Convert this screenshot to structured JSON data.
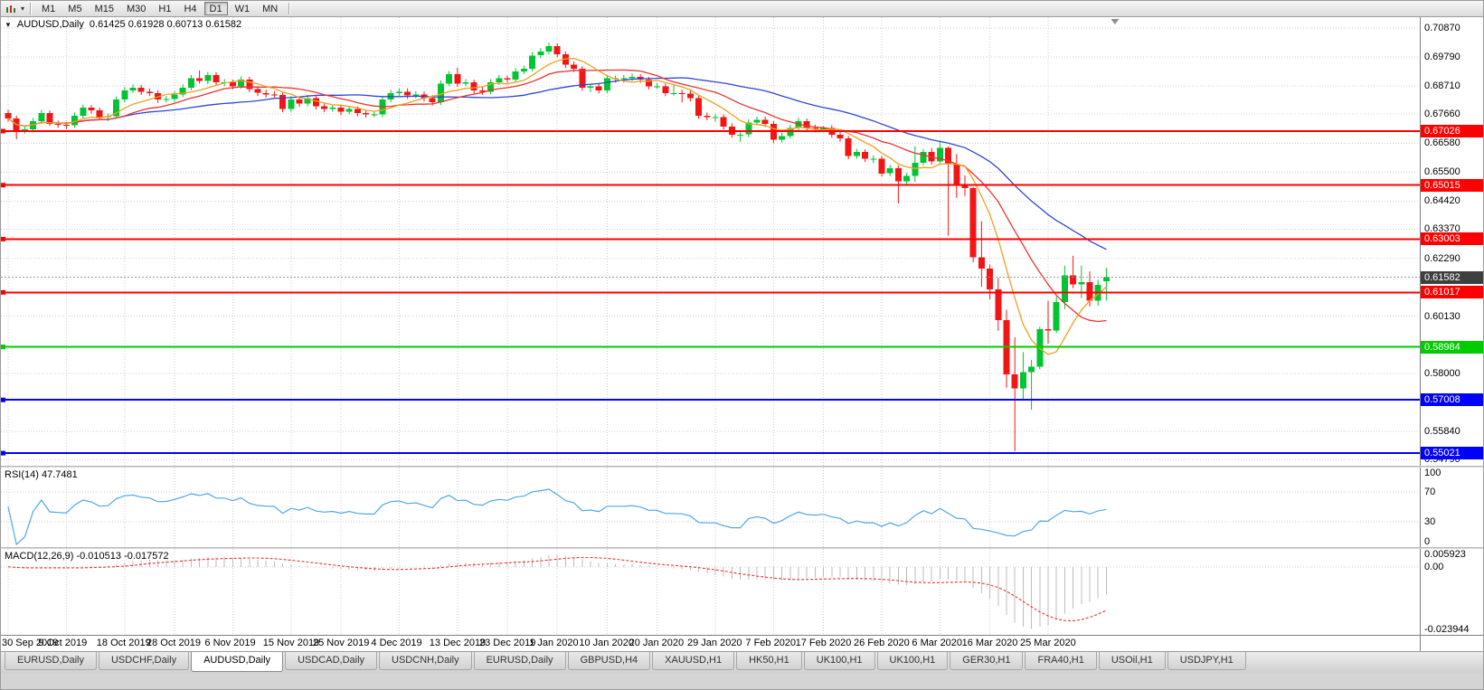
{
  "toolbar": {
    "timeframes": [
      "M1",
      "M5",
      "M15",
      "M30",
      "H1",
      "H4",
      "D1",
      "W1",
      "MN"
    ],
    "active_timeframe": "D1"
  },
  "chart": {
    "symbol_title": "AUDUSD,Daily",
    "ohlc_display": "0.61425 0.61928 0.60713 0.61582",
    "collapse_icon": "▼",
    "colors": {
      "up": "#00C432",
      "down": "#F21515",
      "grid": "#CFCFCF",
      "ma_slow": "#2E46D2",
      "ma_mid": "#E93434",
      "ma_fast": "#F0A020",
      "bid_line": "#9A9A9A",
      "current_label_bg": "#3F3F3F",
      "shift_marker": "#8E8E8E"
    },
    "price_axis": {
      "max": 0.7087,
      "min": 0.5479,
      "ticks": [
        {
          "value": 0.7087,
          "label": "0.70870"
        },
        {
          "value": 0.6979,
          "label": "0.69790"
        },
        {
          "value": 0.6871,
          "label": "0.68710"
        },
        {
          "value": 0.6766,
          "label": "0.67660"
        },
        {
          "value": 0.6658,
          "label": "0.66580"
        },
        {
          "value": 0.655,
          "label": "0.65500"
        },
        {
          "value": 0.6442,
          "label": "0.64420"
        },
        {
          "value": 0.6337,
          "label": "0.63370"
        },
        {
          "value": 0.6229,
          "label": "0.62290"
        },
        {
          "value": 0.6013,
          "label": "0.60130"
        },
        {
          "value": 0.58,
          "label": "0.58000"
        },
        {
          "value": 0.5584,
          "label": "0.55840"
        },
        {
          "value": 0.5479,
          "label": "0.54790"
        }
      ]
    },
    "current_price": {
      "value": 0.61582,
      "label": "0.61582"
    },
    "hlines": [
      {
        "value": 0.67026,
        "label": "0.67026",
        "color": "#FF0000"
      },
      {
        "value": 0.65015,
        "label": "0.65015",
        "color": "#FF0000"
      },
      {
        "value": 0.63003,
        "label": "0.63003",
        "color": "#FF0000"
      },
      {
        "value": 0.61017,
        "label": "0.61017",
        "color": "#FF0000"
      },
      {
        "value": 0.58984,
        "label": "0.58984",
        "color": "#00CC00"
      },
      {
        "value": 0.57008,
        "label": "0.57008",
        "color": "#0000FF"
      },
      {
        "value": 0.55021,
        "label": "0.55021",
        "color": "#0000FF"
      }
    ],
    "mas": [
      {
        "period": 30,
        "color": "#2E46D2"
      },
      {
        "period": 14,
        "color": "#E93434"
      },
      {
        "period": 7,
        "color": "#F0A020"
      }
    ],
    "time_axis": {
      "ticks": [
        [
          "30 Sep 2019",
          0
        ],
        [
          "9 Oct 2019",
          7
        ],
        [
          "18 Oct 2019",
          14
        ],
        [
          "28 Oct 2019",
          20
        ],
        [
          "6 Nov 2019",
          27
        ],
        [
          "15 Nov 2019",
          34
        ],
        [
          "25 Nov 2019",
          40
        ],
        [
          "4 Dec 2019",
          47
        ],
        [
          "13 Dec 2019",
          54
        ],
        [
          "23 Dec 2019",
          60
        ],
        [
          "1 Jan 2020",
          66
        ],
        [
          "10 Jan 2020",
          72
        ],
        [
          "20 Jan 2020",
          78
        ],
        [
          "29 Jan 2020",
          85
        ],
        [
          "7 Feb 2020",
          92
        ],
        [
          "17 Feb 2020",
          98
        ],
        [
          "26 Feb 2020",
          105
        ],
        [
          "6 Mar 2020",
          112
        ],
        [
          "16 Mar 2020",
          118
        ],
        [
          "25 Mar 2020",
          125
        ]
      ]
    },
    "candles": [
      [
        0.677,
        0.6782,
        0.6738,
        0.675
      ],
      [
        0.675,
        0.676,
        0.6672,
        0.6705
      ],
      [
        0.6705,
        0.672,
        0.6693,
        0.671
      ],
      [
        0.671,
        0.6752,
        0.6698,
        0.674
      ],
      [
        0.674,
        0.6782,
        0.673,
        0.677
      ],
      [
        0.677,
        0.678,
        0.6722,
        0.673
      ],
      [
        0.673,
        0.6742,
        0.6715,
        0.6727
      ],
      [
        0.6727,
        0.6737,
        0.671,
        0.6725
      ],
      [
        0.6725,
        0.6772,
        0.6715,
        0.676
      ],
      [
        0.676,
        0.6802,
        0.675,
        0.679
      ],
      [
        0.679,
        0.68,
        0.6768,
        0.678
      ],
      [
        0.678,
        0.679,
        0.6745,
        0.6755
      ],
      [
        0.6755,
        0.6768,
        0.674,
        0.6758
      ],
      [
        0.6758,
        0.6832,
        0.675,
        0.682
      ],
      [
        0.682,
        0.6867,
        0.681,
        0.6855
      ],
      [
        0.6855,
        0.6877,
        0.6845,
        0.6865
      ],
      [
        0.6865,
        0.6875,
        0.6838,
        0.685
      ],
      [
        0.685,
        0.6862,
        0.6833,
        0.6845
      ],
      [
        0.6845,
        0.6855,
        0.6808,
        0.682
      ],
      [
        0.682,
        0.6834,
        0.681,
        0.6822
      ],
      [
        0.6822,
        0.6852,
        0.6812,
        0.684
      ],
      [
        0.684,
        0.6877,
        0.683,
        0.6865
      ],
      [
        0.6865,
        0.6912,
        0.6855,
        0.69
      ],
      [
        0.69,
        0.6929,
        0.688,
        0.689
      ],
      [
        0.689,
        0.6924,
        0.6878,
        0.6912
      ],
      [
        0.6912,
        0.6922,
        0.6873,
        0.6885
      ],
      [
        0.6885,
        0.6897,
        0.687,
        0.6885
      ],
      [
        0.6885,
        0.6895,
        0.6858,
        0.687
      ],
      [
        0.687,
        0.6907,
        0.686,
        0.6895
      ],
      [
        0.6895,
        0.6905,
        0.6848,
        0.686
      ],
      [
        0.686,
        0.687,
        0.6833,
        0.6845
      ],
      [
        0.6845,
        0.6857,
        0.6828,
        0.684
      ],
      [
        0.684,
        0.6852,
        0.6826,
        0.6838
      ],
      [
        0.6838,
        0.6848,
        0.6773,
        0.6785
      ],
      [
        0.6785,
        0.6832,
        0.6775,
        0.682
      ],
      [
        0.682,
        0.683,
        0.6793,
        0.6805
      ],
      [
        0.6805,
        0.6837,
        0.6795,
        0.6825
      ],
      [
        0.6825,
        0.6835,
        0.6783,
        0.6795
      ],
      [
        0.6795,
        0.6807,
        0.6773,
        0.6785
      ],
      [
        0.6785,
        0.6802,
        0.6775,
        0.679
      ],
      [
        0.679,
        0.68,
        0.6763,
        0.6775
      ],
      [
        0.6775,
        0.6797,
        0.6765,
        0.6785
      ],
      [
        0.6785,
        0.6795,
        0.6758,
        0.677
      ],
      [
        0.677,
        0.678,
        0.6753,
        0.6765
      ],
      [
        0.6765,
        0.6777,
        0.6755,
        0.6765
      ],
      [
        0.6765,
        0.6832,
        0.6755,
        0.682
      ],
      [
        0.682,
        0.6857,
        0.681,
        0.6845
      ],
      [
        0.6845,
        0.6862,
        0.6835,
        0.685
      ],
      [
        0.685,
        0.6862,
        0.6823,
        0.6835
      ],
      [
        0.6835,
        0.6852,
        0.6825,
        0.684
      ],
      [
        0.684,
        0.685,
        0.6813,
        0.6825
      ],
      [
        0.6825,
        0.6837,
        0.6798,
        0.681
      ],
      [
        0.681,
        0.6892,
        0.68,
        0.688
      ],
      [
        0.688,
        0.6927,
        0.687,
        0.6915
      ],
      [
        0.6915,
        0.6939,
        0.6868,
        0.688
      ],
      [
        0.688,
        0.6897,
        0.687,
        0.6885
      ],
      [
        0.6885,
        0.6895,
        0.6843,
        0.6855
      ],
      [
        0.6855,
        0.6867,
        0.6838,
        0.685
      ],
      [
        0.685,
        0.6897,
        0.684,
        0.6885
      ],
      [
        0.6885,
        0.6912,
        0.6875,
        0.69
      ],
      [
        0.69,
        0.691,
        0.6883,
        0.6895
      ],
      [
        0.6895,
        0.6937,
        0.6885,
        0.6925
      ],
      [
        0.6925,
        0.6947,
        0.6915,
        0.6935
      ],
      [
        0.6935,
        0.6997,
        0.6925,
        0.6985
      ],
      [
        0.6985,
        0.7012,
        0.6975,
        0.7
      ],
      [
        0.7,
        0.7032,
        0.699,
        0.702
      ],
      [
        0.702,
        0.703,
        0.6978,
        0.699
      ],
      [
        0.699,
        0.7,
        0.6938,
        0.695
      ],
      [
        0.695,
        0.6962,
        0.6923,
        0.6935
      ],
      [
        0.6935,
        0.6945,
        0.6853,
        0.6865
      ],
      [
        0.6865,
        0.6877,
        0.6849,
        0.687
      ],
      [
        0.687,
        0.688,
        0.6843,
        0.6855
      ],
      [
        0.6855,
        0.6912,
        0.6845,
        0.69
      ],
      [
        0.69,
        0.691,
        0.6883,
        0.69
      ],
      [
        0.69,
        0.6912,
        0.6883,
        0.69
      ],
      [
        0.69,
        0.6917,
        0.689,
        0.6905
      ],
      [
        0.6905,
        0.6915,
        0.6883,
        0.6895
      ],
      [
        0.6895,
        0.6905,
        0.6858,
        0.687
      ],
      [
        0.687,
        0.6882,
        0.686,
        0.687
      ],
      [
        0.687,
        0.688,
        0.6833,
        0.6845
      ],
      [
        0.6845,
        0.6877,
        0.6835,
        0.6845
      ],
      [
        0.6845,
        0.6857,
        0.681,
        0.6842
      ],
      [
        0.6842,
        0.6854,
        0.6813,
        0.6825
      ],
      [
        0.6825,
        0.6835,
        0.6748,
        0.676
      ],
      [
        0.676,
        0.6772,
        0.6743,
        0.6755
      ],
      [
        0.6755,
        0.6767,
        0.6738,
        0.6755
      ],
      [
        0.6755,
        0.6765,
        0.6708,
        0.672
      ],
      [
        0.672,
        0.6732,
        0.6678,
        0.669
      ],
      [
        0.669,
        0.6702,
        0.6663,
        0.669
      ],
      [
        0.669,
        0.6747,
        0.668,
        0.6735
      ],
      [
        0.6735,
        0.6757,
        0.6725,
        0.6745
      ],
      [
        0.6745,
        0.6757,
        0.6718,
        0.673
      ],
      [
        0.673,
        0.674,
        0.6658,
        0.667
      ],
      [
        0.667,
        0.6697,
        0.666,
        0.6685
      ],
      [
        0.6685,
        0.6727,
        0.6675,
        0.6715
      ],
      [
        0.6715,
        0.6752,
        0.6705,
        0.674
      ],
      [
        0.674,
        0.675,
        0.6703,
        0.6715
      ],
      [
        0.6715,
        0.6727,
        0.6698,
        0.671
      ],
      [
        0.671,
        0.6722,
        0.6698,
        0.6715
      ],
      [
        0.6715,
        0.6725,
        0.6678,
        0.669
      ],
      [
        0.669,
        0.6702,
        0.6663,
        0.6675
      ],
      [
        0.6675,
        0.6685,
        0.6598,
        0.661
      ],
      [
        0.661,
        0.6637,
        0.66,
        0.6625
      ],
      [
        0.6625,
        0.6635,
        0.6588,
        0.66
      ],
      [
        0.66,
        0.6612,
        0.6583,
        0.66
      ],
      [
        0.66,
        0.661,
        0.6533,
        0.6545
      ],
      [
        0.6545,
        0.6577,
        0.6535,
        0.6565
      ],
      [
        0.6565,
        0.6575,
        0.6433,
        0.6515
      ],
      [
        0.6515,
        0.6547,
        0.6505,
        0.6535
      ],
      [
        0.6535,
        0.6646,
        0.6513,
        0.6585
      ],
      [
        0.6585,
        0.6637,
        0.6575,
        0.6625
      ],
      [
        0.6625,
        0.664,
        0.6578,
        0.659
      ],
      [
        0.659,
        0.6663,
        0.658,
        0.664
      ],
      [
        0.664,
        0.6645,
        0.6313,
        0.658
      ],
      [
        0.658,
        0.6617,
        0.6454,
        0.65
      ],
      [
        0.65,
        0.6538,
        0.6461,
        0.649
      ],
      [
        0.649,
        0.6495,
        0.6214,
        0.6232
      ],
      [
        0.6232,
        0.6367,
        0.6122,
        0.619
      ],
      [
        0.619,
        0.6205,
        0.6076,
        0.6112
      ],
      [
        0.6112,
        0.6156,
        0.5958,
        0.5998
      ],
      [
        0.5998,
        0.6037,
        0.5746,
        0.5796
      ],
      [
        0.5796,
        0.5934,
        0.551,
        0.5744
      ],
      [
        0.5744,
        0.5879,
        0.5701,
        0.5805
      ],
      [
        0.5805,
        0.585,
        0.5664,
        0.5825
      ],
      [
        0.5825,
        0.5974,
        0.5815,
        0.5965
      ],
      [
        0.5965,
        0.607,
        0.591,
        0.596
      ],
      [
        0.596,
        0.6085,
        0.595,
        0.6065
      ],
      [
        0.6065,
        0.6201,
        0.6039,
        0.6165
      ],
      [
        0.6165,
        0.6238,
        0.6117,
        0.6131
      ],
      [
        0.6131,
        0.6201,
        0.608,
        0.6139
      ],
      [
        0.6139,
        0.618,
        0.6049,
        0.607
      ],
      [
        0.607,
        0.6148,
        0.6052,
        0.613
      ],
      [
        0.61425,
        0.61928,
        0.60713,
        0.61582
      ]
    ]
  },
  "rsi": {
    "label": "RSI(14) 47.7481",
    "period": 14,
    "color": "#4FA8E8",
    "levels": [
      {
        "value": 100,
        "label": "100"
      },
      {
        "value": 70,
        "label": "70"
      },
      {
        "value": 30,
        "label": "30"
      },
      {
        "value": 0,
        "label": "0"
      }
    ]
  },
  "macd": {
    "label": "MACD(12,26,9) -0.010513 -0.017572",
    "fast": 12,
    "slow": 26,
    "signal": 9,
    "histogram_color": "#BDBDBD",
    "signal_color": "#E93434",
    "axis": {
      "max": 0.005923,
      "min": -0.023944,
      "max_label": "0.005923",
      "zero_label": "0.00",
      "min_label": "-0.023944"
    }
  },
  "tabs": {
    "active_index": 2,
    "items": [
      "EURUSD,Daily",
      "USDCHF,Daily",
      "AUDUSD,Daily",
      "USDCAD,Daily",
      "USDCNH,Daily",
      "EURUSD,Daily",
      "GBPUSD,H4",
      "XAUUSD,H1",
      "HK50,H1",
      "UK100,H1",
      "UK100,H1",
      "GER30,H1",
      "FRA40,H1",
      "USOil,H1",
      "USDJPY,H1"
    ]
  }
}
